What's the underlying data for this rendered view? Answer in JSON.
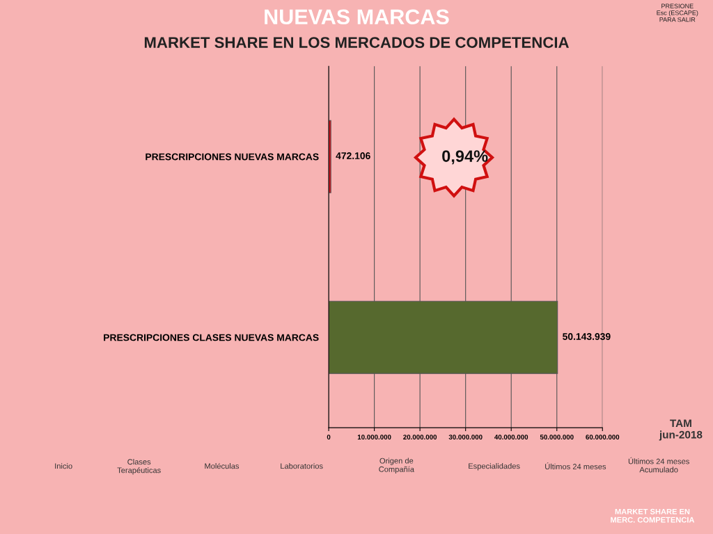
{
  "chart_data": {
    "type": "bar",
    "orientation": "horizontal",
    "title": "NUEVAS MARCAS",
    "subtitle": "MARKET SHARE EN LOS MERCADOS DE COMPETENCIA",
    "categories": [
      "PRESCRIPCIONES NUEVAS MARCAS",
      "PRESCRIPCIONES CLASES NUEVAS MARCAS"
    ],
    "values": [
      472106,
      50143939
    ],
    "colors": [
      "#e0101a",
      "#56692e"
    ],
    "value_labels": [
      "472.106",
      "50.143.939"
    ],
    "xlim": [
      0,
      60000000
    ],
    "xticks": [
      0,
      {
        "value": 10000000,
        "label": "10.000.000"
      },
      {
        "value": 20000000,
        "label": "20.000.000"
      },
      {
        "value": 30000000,
        "label": "30.000.000"
      },
      {
        "value": 40000000,
        "label": "40.000.000"
      },
      {
        "value": 50000000,
        "label": "50.000.000"
      },
      {
        "value": 60000000,
        "label": "60.000.000"
      }
    ],
    "grid": "x",
    "legend": false,
    "annotations": [
      "0,94%",
      "TAM\njun-2018",
      "PRESIONE\nEsc (ESCAPE)\nPARA SALIR",
      "Inicio",
      "Clases\nTerapéuticas",
      "Moléculas",
      "Laboratorios",
      "Origen de\nCompañía",
      "Especialidades",
      "Últimos 24 meses",
      "Últimos 24 meses\nAcumulado",
      "MARKET SHARE EN\nMERC. COMPETENCIA"
    ]
  }
}
